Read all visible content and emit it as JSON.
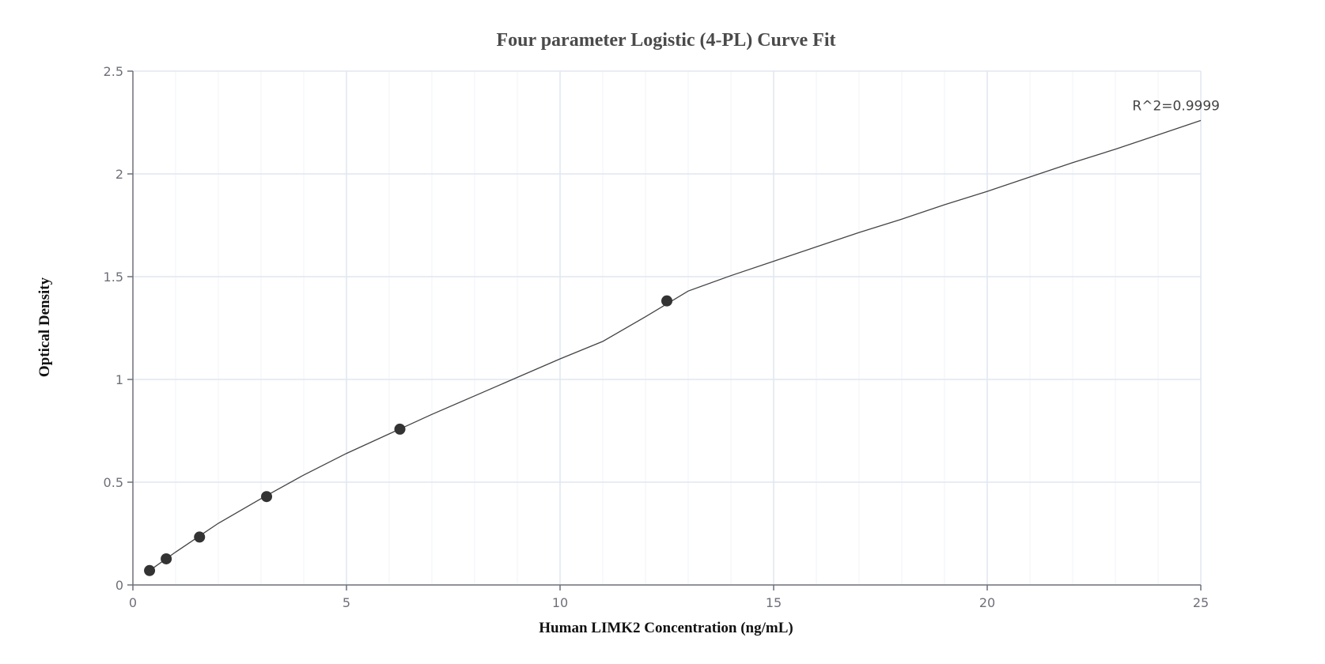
{
  "chart_data": {
    "type": "scatter",
    "title": "Four parameter Logistic (4-PL) Curve Fit",
    "xlabel": "Human LIMK2 Concentration (ng/mL)",
    "ylabel": "Optical Density",
    "xlim": [
      0,
      25
    ],
    "ylim": [
      0,
      2.5
    ],
    "x_ticks": [
      0,
      5,
      10,
      15,
      20,
      25
    ],
    "x_tick_labels": [
      "0",
      "5",
      "10",
      "15",
      "20",
      "25"
    ],
    "y_ticks": [
      0,
      0.5,
      1,
      1.5,
      2,
      2.5
    ],
    "y_tick_labels": [
      "0",
      "0.5",
      "1",
      "1.5",
      "2",
      "2.5"
    ],
    "grid": true,
    "series": [
      {
        "x": [
          0.39,
          0.78,
          1.56,
          3.13,
          6.25,
          12.5
        ],
        "y": [
          0.07,
          0.127,
          0.233,
          0.43,
          0.758,
          1.382
        ]
      }
    ],
    "fit_curve": {
      "x": [
        0.39,
        1,
        2,
        3,
        4,
        5,
        6,
        7,
        8,
        9,
        10,
        11,
        12,
        13,
        14,
        15,
        16,
        17,
        18,
        19,
        20,
        21,
        22,
        23,
        24,
        25
      ],
      "y": [
        0.07,
        0.16,
        0.3,
        0.42,
        0.535,
        0.64,
        0.735,
        0.83,
        0.92,
        1.01,
        1.1,
        1.185,
        1.305,
        1.43,
        1.505,
        1.575,
        1.645,
        1.715,
        1.78,
        1.85,
        1.915,
        1.985,
        2.055,
        2.12,
        2.19,
        2.26
      ]
    },
    "annotations": [
      {
        "text": "R^2=0.9999",
        "x": 25,
        "y": 2.29
      }
    ],
    "colors": {
      "point": "#333333",
      "curve": "#444444",
      "grid_major": "#e0e6f1",
      "grid_minor": "#f1f3f8",
      "axis": "#6e7079"
    }
  }
}
